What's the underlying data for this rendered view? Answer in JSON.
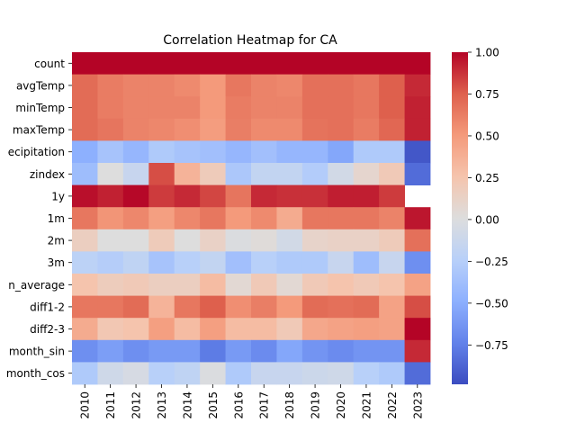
{
  "chart_data": {
    "type": "heatmap",
    "title": "Correlation Heatmap for CA",
    "xlabel": "",
    "ylabel": "",
    "colormap": "coolwarm",
    "colormap_low": "#3b4cc0",
    "colormap_mid": "#dddddd",
    "colormap_high": "#b40426",
    "x_categories": [
      "2010",
      "2011",
      "2012",
      "2013",
      "2014",
      "2015",
      "2016",
      "2017",
      "2018",
      "2019",
      "2020",
      "2021",
      "2022",
      "2023"
    ],
    "y_categories": [
      "count",
      "avgTemp",
      "minTemp",
      "maxTemp",
      "ecipitation",
      "zindex",
      "1y",
      "1m",
      "2m",
      "3m",
      "n_average",
      "diff1-2",
      "diff2-3",
      "month_sin",
      "month_cos"
    ],
    "values": [
      [
        1.0,
        1.0,
        1.0,
        1.0,
        1.0,
        1.0,
        1.0,
        1.0,
        1.0,
        1.0,
        1.0,
        1.0,
        1.0,
        1.0
      ],
      [
        0.7,
        0.63,
        0.6,
        0.6,
        0.57,
        0.5,
        0.65,
        0.6,
        0.58,
        0.68,
        0.68,
        0.65,
        0.75,
        0.9
      ],
      [
        0.7,
        0.63,
        0.6,
        0.6,
        0.6,
        0.5,
        0.63,
        0.6,
        0.6,
        0.68,
        0.68,
        0.65,
        0.75,
        0.92
      ],
      [
        0.7,
        0.66,
        0.6,
        0.58,
        0.55,
        0.48,
        0.62,
        0.57,
        0.57,
        0.67,
        0.68,
        0.63,
        0.72,
        0.92
      ],
      [
        -0.5,
        -0.35,
        -0.45,
        -0.3,
        -0.35,
        -0.38,
        -0.45,
        -0.38,
        -0.45,
        -0.45,
        -0.55,
        -0.3,
        -0.3,
        -0.95
      ],
      [
        -0.4,
        0.0,
        -0.15,
        0.8,
        0.35,
        0.18,
        -0.32,
        -0.18,
        -0.18,
        -0.28,
        -0.08,
        0.08,
        0.2,
        -0.85
      ],
      [
        0.97,
        0.92,
        0.99,
        0.85,
        0.9,
        0.82,
        0.66,
        0.9,
        0.88,
        0.88,
        0.93,
        0.93,
        0.85,
        null
      ],
      [
        0.65,
        0.52,
        0.58,
        0.47,
        0.58,
        0.65,
        0.5,
        0.57,
        0.4,
        0.65,
        0.65,
        0.65,
        0.6,
        0.95
      ],
      [
        0.15,
        0.0,
        0.0,
        0.18,
        0.0,
        0.12,
        -0.02,
        0.02,
        -0.08,
        0.1,
        0.12,
        0.12,
        0.18,
        0.68
      ],
      [
        -0.22,
        -0.27,
        -0.2,
        -0.35,
        -0.25,
        -0.18,
        -0.38,
        -0.25,
        -0.3,
        -0.3,
        -0.15,
        -0.4,
        -0.15,
        -0.68
      ],
      [
        0.25,
        0.17,
        0.2,
        0.15,
        0.15,
        0.3,
        0.05,
        0.2,
        0.05,
        0.2,
        0.25,
        0.2,
        0.25,
        0.45
      ],
      [
        0.65,
        0.65,
        0.7,
        0.35,
        0.65,
        0.75,
        0.55,
        0.62,
        0.5,
        0.7,
        0.68,
        0.7,
        0.45,
        0.8
      ],
      [
        0.4,
        0.22,
        0.25,
        0.47,
        0.3,
        0.47,
        0.3,
        0.3,
        0.2,
        0.42,
        0.45,
        0.47,
        0.45,
        1.0
      ],
      [
        -0.68,
        -0.6,
        -0.68,
        -0.62,
        -0.62,
        -0.78,
        -0.62,
        -0.7,
        -0.55,
        -0.65,
        -0.7,
        -0.65,
        -0.65,
        0.9
      ],
      [
        -0.3,
        -0.1,
        -0.05,
        -0.25,
        -0.2,
        -0.02,
        -0.3,
        -0.15,
        -0.15,
        -0.12,
        -0.1,
        -0.25,
        -0.3,
        -0.85
      ]
    ],
    "vmin": -1.0,
    "vmax": 1.0,
    "colorbar_ticks": [
      1.0,
      0.75,
      0.5,
      0.25,
      0.0,
      -0.25,
      -0.5,
      -0.75
    ],
    "colorbar_tick_labels": [
      "1.00",
      "0.75",
      "0.50",
      "0.25",
      "0.00",
      "−0.25",
      "−0.50",
      "−0.75"
    ]
  }
}
